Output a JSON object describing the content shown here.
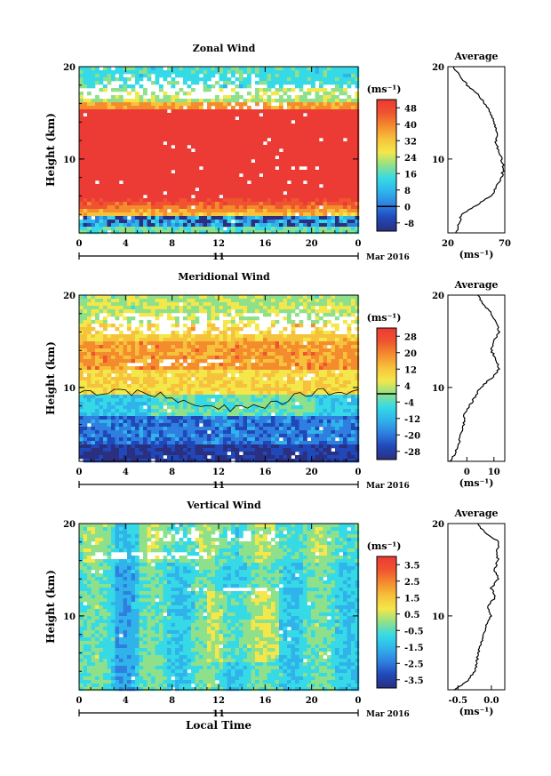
{
  "chart_data": [
    {
      "type": "heatmap",
      "title": "Zonal Wind",
      "ylabel": "Height (km)",
      "xticks": [
        "0",
        "4",
        "8",
        "12",
        "16",
        "20",
        "0"
      ],
      "date_day": "11",
      "date_label": "Mar 2016",
      "xlim": [
        0,
        24
      ],
      "ylim": [
        2,
        20
      ],
      "yticks": [
        "20",
        "10"
      ],
      "units": "(ms⁻¹)",
      "colorbar": {
        "ticks": [
          "48",
          "40",
          "32",
          "24",
          "16",
          "8",
          "0",
          "-8"
        ],
        "range": [
          -12,
          52
        ],
        "contour_level": 0
      },
      "average": {
        "title": "Average",
        "xlabel": "(ms⁻¹)",
        "xticks": [
          "20",
          "70"
        ],
        "xlim": [
          20,
          70
        ],
        "yticks": [
          "20",
          "10"
        ],
        "height_km": [
          2,
          3,
          4,
          5,
          6,
          7,
          8,
          9,
          10,
          11,
          12,
          13,
          14,
          15,
          16,
          17,
          18,
          19,
          20
        ],
        "value_ms": [
          27,
          30,
          32,
          45,
          58,
          63,
          67,
          69,
          67,
          64,
          62,
          63,
          60,
          58,
          52,
          47,
          37,
          30,
          25
        ]
      }
    },
    {
      "type": "heatmap",
      "title": "Meridional Wind",
      "ylabel": "Height (km)",
      "xticks": [
        "0",
        "4",
        "8",
        "12",
        "16",
        "20",
        "0"
      ],
      "date_day": "11",
      "date_label": "Mar 2016",
      "xlim": [
        0,
        24
      ],
      "ylim": [
        2,
        20
      ],
      "yticks": [
        "20",
        "10"
      ],
      "units": "(ms⁻¹)",
      "colorbar": {
        "ticks": [
          "28",
          "20",
          "12",
          "4",
          "-4",
          "-12",
          "-20",
          "-28"
        ],
        "range": [
          -32,
          32
        ],
        "contour_level": 0
      },
      "average": {
        "title": "Average",
        "xlabel": "(ms⁻¹)",
        "xticks": [
          "0",
          "10"
        ],
        "xlim": [
          -7,
          14
        ],
        "yticks": [
          "20",
          "10"
        ],
        "height_km": [
          2,
          3,
          4,
          5,
          6,
          7,
          8,
          9,
          10,
          11,
          12,
          13,
          14,
          15,
          16,
          17,
          18,
          19,
          20
        ],
        "value_ms": [
          -6,
          -4,
          -3,
          -2,
          -1,
          -1,
          1,
          3,
          5,
          9,
          12,
          11,
          9,
          10,
          12,
          11,
          9,
          6,
          4
        ]
      }
    },
    {
      "type": "heatmap",
      "title": "Vertical Wind",
      "ylabel": "Height (km)",
      "xlabel": "Local Time",
      "xticks": [
        "0",
        "4",
        "8",
        "12",
        "16",
        "20",
        "0"
      ],
      "date_day": "11",
      "date_label": "Mar 2016",
      "xlim": [
        0,
        24
      ],
      "ylim": [
        2,
        20
      ],
      "yticks": [
        "20",
        "10"
      ],
      "units": "(ms⁻¹)",
      "colorbar": {
        "ticks": [
          "3.5",
          "2.5",
          "1.5",
          "0.5",
          "-0.5",
          "-1.5",
          "-2.5",
          "-3.5"
        ],
        "range": [
          -4,
          4
        ],
        "contour_level": null
      },
      "average": {
        "title": "Average",
        "xlabel": "(ms⁻¹)",
        "xticks": [
          "-0.5",
          "0.0"
        ],
        "xlim": [
          -0.65,
          0.2
        ],
        "yticks": [
          "20",
          "10"
        ],
        "height_km": [
          2,
          3,
          4,
          5,
          6,
          7,
          8,
          9,
          10,
          11,
          12,
          13,
          14,
          15,
          16,
          17,
          18,
          19,
          20
        ],
        "value_ms": [
          -0.55,
          -0.35,
          -0.25,
          -0.22,
          -0.2,
          -0.15,
          -0.12,
          -0.08,
          0.0,
          -0.05,
          0.05,
          0.0,
          0.1,
          0.05,
          0.1,
          0.08,
          0.12,
          -0.1,
          -0.2
        ]
      }
    }
  ],
  "colormap": [
    "#2a2f7f",
    "#2148b8",
    "#2f7fe0",
    "#30b3ea",
    "#35dae6",
    "#8fe08a",
    "#f4e74a",
    "#f7c23b",
    "#f48c2e",
    "#ef5330",
    "#ec3a34"
  ]
}
